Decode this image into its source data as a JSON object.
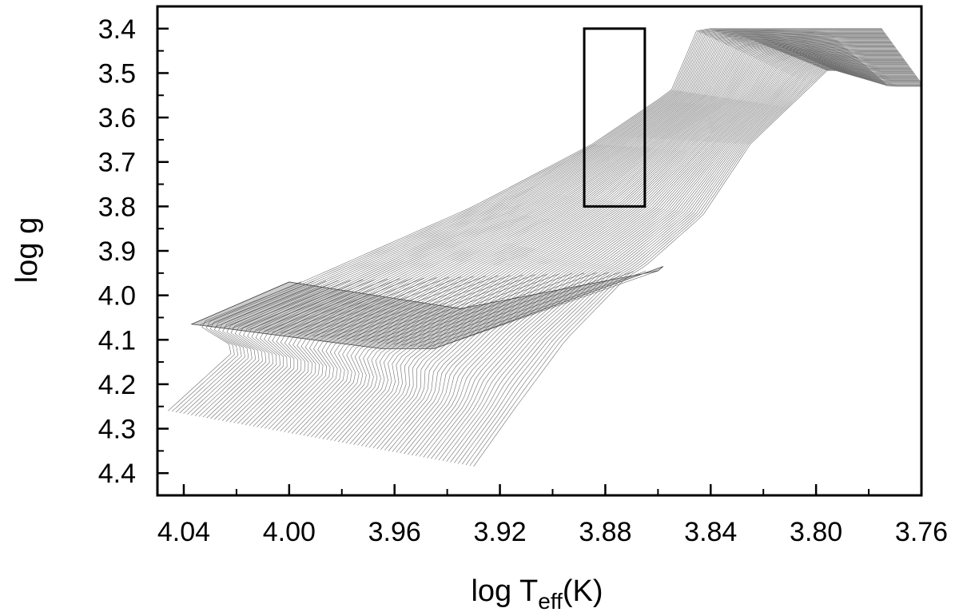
{
  "chart_data": {
    "type": "line",
    "title": "",
    "xlabel": {
      "main": "log T",
      "sub": "eff",
      "unit": "(K)"
    },
    "ylabel": "log g",
    "xlim": [
      4.05,
      3.76
    ],
    "ylim": [
      4.45,
      3.35
    ],
    "x_reversed": true,
    "y_reversed": true,
    "x_ticks": [
      {
        "value": 4.04,
        "label": "4.04"
      },
      {
        "value": 4.0,
        "label": "4.00"
      },
      {
        "value": 3.96,
        "label": "3.96"
      },
      {
        "value": 3.92,
        "label": "3.92"
      },
      {
        "value": 3.88,
        "label": "3.88"
      },
      {
        "value": 3.84,
        "label": "3.84"
      },
      {
        "value": 3.8,
        "label": "3.80"
      },
      {
        "value": 3.76,
        "label": "3.76"
      }
    ],
    "y_ticks": [
      {
        "value": 3.4,
        "label": "3.4"
      },
      {
        "value": 3.5,
        "label": "3.5"
      },
      {
        "value": 3.6,
        "label": "3.6"
      },
      {
        "value": 3.7,
        "label": "3.7"
      },
      {
        "value": 3.8,
        "label": "3.8"
      },
      {
        "value": 3.9,
        "label": "3.9"
      },
      {
        "value": 4.0,
        "label": "4.0"
      },
      {
        "value": 4.1,
        "label": "4.1"
      },
      {
        "value": 4.2,
        "label": "4.2"
      },
      {
        "value": 4.3,
        "label": "4.3"
      },
      {
        "value": 4.4,
        "label": "4.4"
      }
    ],
    "grid": false,
    "legend": "none",
    "series": [
      {
        "role": "main-sequence tracks",
        "count": 80,
        "color": "#6e6e6e",
        "first_track": [
          [
            4.046,
            4.26
          ],
          [
            4.02,
            4.12
          ],
          [
            4.035,
            4.065
          ],
          [
            3.995,
            3.97
          ],
          [
            3.93,
            3.8
          ],
          [
            3.885,
            3.66
          ],
          [
            3.855,
            3.54
          ],
          [
            3.845,
            3.4
          ],
          [
            3.775,
            3.4
          ]
        ],
        "last_track": [
          [
            3.93,
            4.385
          ],
          [
            3.915,
            4.26
          ],
          [
            3.895,
            4.1
          ],
          [
            3.872,
            3.96
          ],
          [
            3.865,
            3.935
          ],
          [
            3.843,
            3.82
          ],
          [
            3.825,
            3.66
          ],
          [
            3.795,
            3.49
          ],
          [
            3.772,
            3.53
          ],
          [
            3.759,
            3.53
          ]
        ]
      },
      {
        "role": "zero-age band",
        "color": "#4a4a4a",
        "polygon": [
          [
            4.037,
            4.065
          ],
          [
            4.0,
            3.97
          ],
          [
            3.935,
            4.03
          ],
          [
            3.86,
            3.945
          ],
          [
            3.858,
            3.935
          ],
          [
            3.945,
            4.12
          ],
          [
            3.965,
            4.12
          ],
          [
            4.03,
            4.07
          ]
        ]
      }
    ],
    "annotations": [
      {
        "type": "rectangle",
        "x": [
          3.888,
          3.865
        ],
        "y": [
          3.4,
          3.8
        ],
        "color": "#000000"
      }
    ]
  }
}
